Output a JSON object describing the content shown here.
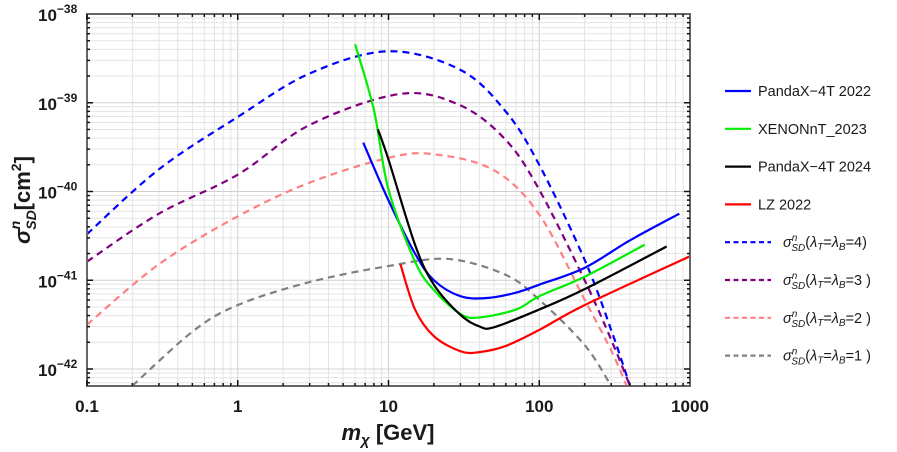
{
  "chart_data": {
    "type": "line",
    "title": "",
    "xlabel": "m_χ [GeV]",
    "ylabel": "σ^n_SD [cm²]",
    "xscale": "log",
    "yscale": "log",
    "xlim": [
      0.1,
      1000
    ],
    "ylim": [
      6e-43,
      1e-38
    ],
    "grid": true,
    "legend_position": "right, outside plot",
    "x_ticks": [
      "0.1",
      "1",
      "10",
      "100",
      "1000"
    ],
    "y_ticks": [
      {
        "base": "10",
        "exp": "−38"
      },
      {
        "base": "10",
        "exp": "−39"
      },
      {
        "base": "10",
        "exp": "−40"
      },
      {
        "base": "10",
        "exp": "−41"
      },
      {
        "base": "10",
        "exp": "−42"
      }
    ],
    "series_note": "y values given as log10(cross-section in cm^2)",
    "series": [
      {
        "name": "PandaX−4T 2022",
        "style": "solid",
        "color": "#0000ff",
        "x": [
          6.8,
          10,
          15,
          20,
          30,
          45,
          70,
          100,
          200,
          400,
          850
        ],
        "y": [
          -39.45,
          -40.1,
          -40.7,
          -41.0,
          -41.18,
          -41.2,
          -41.14,
          -41.05,
          -40.86,
          -40.55,
          -40.25
        ]
      },
      {
        "name": "XENONnT_2023",
        "style": "solid",
        "color": "#00ee00",
        "x": [
          6,
          8,
          10,
          15,
          20,
          30,
          40,
          70,
          100,
          200,
          500
        ],
        "y": [
          -38.34,
          -39.08,
          -39.98,
          -40.79,
          -41.11,
          -41.38,
          -41.42,
          -41.33,
          -41.18,
          -40.96,
          -40.6
        ]
      },
      {
        "name": "PandaX−4T 2024",
        "style": "solid",
        "color": "#000000",
        "x": [
          8.5,
          10,
          15,
          20,
          30,
          40,
          50,
          100,
          200,
          700
        ],
        "y": [
          -39.3,
          -39.64,
          -40.6,
          -41.05,
          -41.39,
          -41.52,
          -41.53,
          -41.33,
          -41.1,
          -40.62
        ]
      },
      {
        "name": "LZ 2022",
        "style": "solid",
        "color": "#ff0000",
        "x": [
          12,
          15,
          20,
          30,
          40,
          60,
          100,
          200,
          1000
        ],
        "y": [
          -40.82,
          -41.33,
          -41.63,
          -41.8,
          -41.81,
          -41.74,
          -41.56,
          -41.28,
          -40.73
        ]
      },
      {
        "name": "σ^n_SD(λT=λB=4)",
        "style": "dashed",
        "color": "#0000ff",
        "x": [
          0.1,
          0.3,
          1,
          3,
          10,
          30,
          60,
          100,
          200,
          300,
          400
        ],
        "y": [
          -40.48,
          -39.75,
          -39.16,
          -38.67,
          -38.42,
          -38.63,
          -39.1,
          -39.7,
          -40.77,
          -41.56,
          -42.19
        ]
      },
      {
        "name": "σ^n_SD(λT=λB=3 )",
        "style": "dashed",
        "color": "#800080",
        "x": [
          0.1,
          0.3,
          1,
          3,
          12,
          30,
          60,
          100,
          200,
          300,
          400
        ],
        "y": [
          -40.79,
          -40.25,
          -39.81,
          -39.25,
          -38.9,
          -39.03,
          -39.42,
          -39.98,
          -41.0,
          -41.67,
          -42.19
        ]
      },
      {
        "name": "σ^n_SD(λT=λB=2 )",
        "style": "dashed",
        "color": "#ff8080",
        "x": [
          0.1,
          0.3,
          1,
          3,
          10,
          20,
          50,
          100,
          200,
          300,
          380
        ],
        "y": [
          -41.5,
          -40.82,
          -40.28,
          -39.9,
          -39.62,
          -39.58,
          -39.76,
          -40.26,
          -41.22,
          -41.79,
          -42.19
        ]
      },
      {
        "name": "σ^n_SD(λT=λB=1 )",
        "style": "dashed",
        "color": "#808080",
        "x": [
          0.2,
          0.5,
          1,
          3,
          10,
          25,
          60,
          100,
          200,
          300
        ],
        "y": [
          -42.19,
          -41.58,
          -41.28,
          -41.02,
          -40.84,
          -40.76,
          -40.94,
          -41.22,
          -41.73,
          -42.19
        ]
      }
    ]
  },
  "legend": {
    "items": [
      {
        "label": "PandaX−4T 2022",
        "color": "#0000ff",
        "dashed": false
      },
      {
        "label": "XENONnT_2023",
        "color": "#00ee00",
        "dashed": false
      },
      {
        "label": "PandaX−4T 2024",
        "color": "#000000",
        "dashed": false
      },
      {
        "label": "LZ 2022",
        "color": "#ff0000",
        "dashed": false
      },
      {
        "label_value": "4)",
        "color": "#0000ff",
        "dashed": true
      },
      {
        "label_value": "3 )",
        "color": "#800080",
        "dashed": true
      },
      {
        "label_value": "2 )",
        "color": "#ff8080",
        "dashed": true
      },
      {
        "label_value": "1 )",
        "color": "#808080",
        "dashed": true
      }
    ]
  },
  "axes": {
    "x_title_var": "m",
    "x_title_sub": "χ",
    "x_title_unit": " [GeV]",
    "y_title_var": "σ",
    "y_title_sup": "n",
    "y_title_sub": "SD",
    "y_title_unit": "[cm",
    "y_title_unit_sup": "2",
    "y_title_close": "]"
  }
}
